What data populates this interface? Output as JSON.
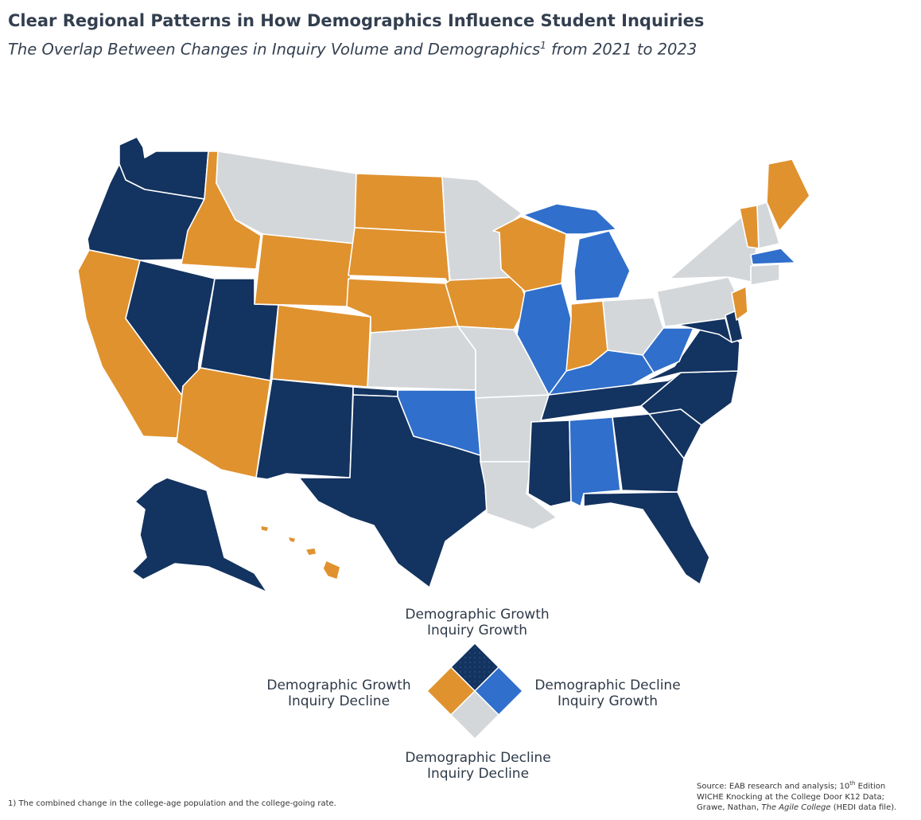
{
  "title": "Clear Regional Patterns in How Demographics Influence Student Inquiries",
  "subtitle": {
    "text": "The Overlap Between Changes in Inquiry Volume and Demographics",
    "footnote_mark": "1",
    "suffix": " from 2021 to 2023"
  },
  "colors": {
    "growth_growth": "#133360",
    "growth_decline": "#e0922f",
    "decline_growth": "#306fcb",
    "decline_decline": "#d4d7da",
    "border": "#ffffff"
  },
  "legend": {
    "top": {
      "line1": "Demographic Growth",
      "line2": "Inquiry Growth"
    },
    "left": {
      "line1": "Demographic Growth",
      "line2": "Inquiry Decline"
    },
    "right": {
      "line1": "Demographic Decline",
      "line2": "Inquiry Growth"
    },
    "bottom": {
      "line1": "Demographic Decline",
      "line2": "Inquiry Decline"
    }
  },
  "map_data": {
    "growth_growth": [
      "WA",
      "OR",
      "NV",
      "UT",
      "NM",
      "TX",
      "OK_PANHANDLE",
      "AK",
      "MS",
      "TN",
      "GA",
      "SC",
      "NC",
      "VA",
      "MD",
      "DE",
      "FL"
    ],
    "growth_decline": [
      "CA",
      "ID",
      "AZ",
      "WY",
      "CO",
      "ND",
      "SD",
      "NE",
      "WI",
      "IA",
      "IN",
      "ME",
      "VT",
      "NJ",
      "HI"
    ],
    "decline_growth": [
      "MI",
      "IL",
      "OK",
      "AL",
      "KY",
      "WV",
      "MA"
    ],
    "decline_decline": [
      "MT",
      "MN",
      "KS",
      "MO",
      "AR",
      "LA",
      "OH",
      "PA",
      "NY",
      "NH",
      "CT"
    ]
  },
  "footnote": "1)  The combined change in the college-age population and the college-going rate.",
  "source": {
    "line1_a": "Source: EAB research and analysis; 10",
    "line1_sup": "th",
    "line1_b": " Edition",
    "line2": "WICHE Knocking at the College Door K12 Data;",
    "line3_a": "Grawe, Nathan, ",
    "line3_italic": "The Agile College",
    "line3_b": " (HEDI data file)."
  }
}
